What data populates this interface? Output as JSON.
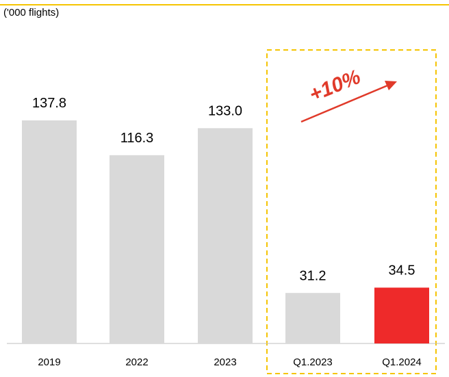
{
  "chart_data": {
    "type": "bar",
    "subtitle": "('000 flights)",
    "categories": [
      "2019",
      "2022",
      "2023",
      "Q1.2023",
      "Q1.2024"
    ],
    "values": [
      137.8,
      116.3,
      133.0,
      31.2,
      34.5
    ],
    "value_labels": [
      "137.8",
      "116.3",
      "133.0",
      "31.2",
      "34.5"
    ],
    "colors": [
      "#d9d9d9",
      "#d9d9d9",
      "#d9d9d9",
      "#d9d9d9",
      "#ee2a2a"
    ],
    "annotation": "+10%"
  }
}
